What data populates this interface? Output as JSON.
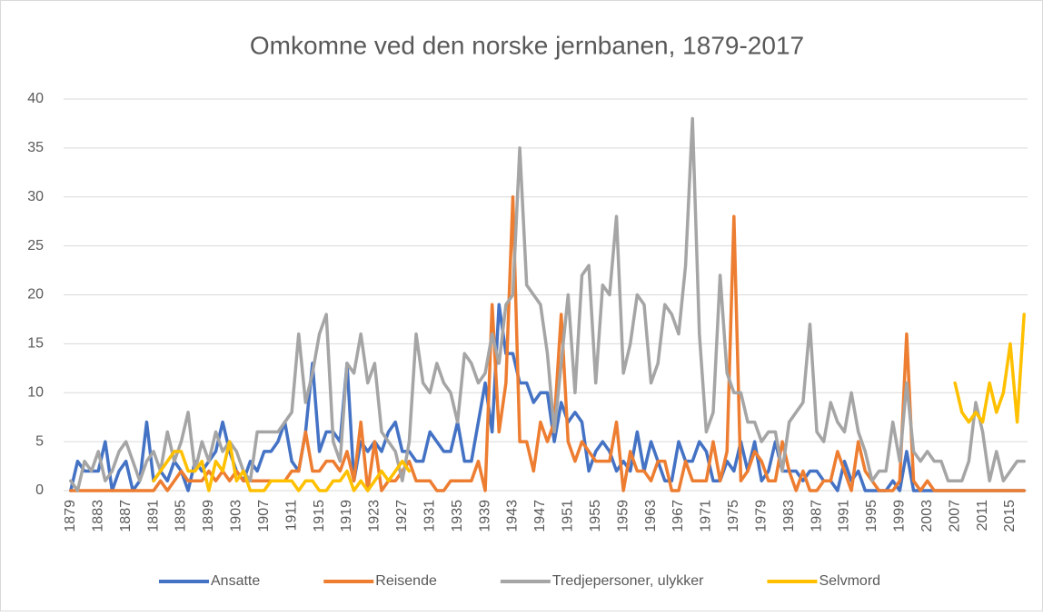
{
  "chart_data": {
    "type": "line",
    "title": "Omkomne ved den norske jernbanen, 1879-2017",
    "categories": [
      "1879",
      null,
      null,
      null,
      "1883",
      null,
      null,
      null,
      "1887",
      null,
      null,
      null,
      "1891",
      null,
      null,
      null,
      "1895",
      null,
      null,
      null,
      "1899",
      null,
      null,
      null,
      "1903",
      null,
      null,
      null,
      "1907",
      null,
      null,
      null,
      "1911",
      null,
      null,
      null,
      "1915",
      null,
      null,
      null,
      "1919",
      null,
      null,
      null,
      "1923",
      null,
      null,
      null,
      "1927",
      null,
      null,
      null,
      "1931",
      null,
      null,
      null,
      "1935",
      null,
      null,
      null,
      "1939",
      null,
      null,
      null,
      "1943",
      null,
      null,
      null,
      "1947",
      null,
      null,
      null,
      "1951",
      null,
      null,
      null,
      "1955",
      null,
      null,
      null,
      "1959",
      null,
      null,
      null,
      "1963",
      null,
      null,
      null,
      "1967",
      null,
      null,
      null,
      "1971",
      null,
      null,
      null,
      "1975",
      null,
      null,
      null,
      "1979",
      null,
      null,
      null,
      "1983",
      null,
      null,
      null,
      "1987",
      null,
      null,
      null,
      "1991",
      null,
      null,
      null,
      "1995",
      null,
      null,
      null,
      "1999",
      null,
      null,
      null,
      "2003",
      null,
      null,
      null,
      "2007",
      null,
      null,
      null,
      "2011",
      null,
      null,
      null,
      "2015",
      null,
      null
    ],
    "series": [
      {
        "name": "Ansatte",
        "color": "#4472c4",
        "values": [
          0,
          3,
          2,
          2,
          2,
          5,
          0,
          2,
          3,
          0,
          1,
          7,
          1,
          2,
          1,
          3,
          2,
          0,
          3,
          2,
          3,
          4,
          7,
          4,
          2,
          1,
          3,
          2,
          4,
          4,
          5,
          7,
          3,
          2,
          6,
          13,
          4,
          6,
          6,
          5,
          13,
          1,
          5,
          4,
          5,
          4,
          6,
          7,
          4,
          4,
          3,
          3,
          6,
          5,
          4,
          4,
          7,
          3,
          3,
          7,
          11,
          6,
          19,
          14,
          14,
          11,
          11,
          9,
          10,
          10,
          5,
          9,
          7,
          8,
          7,
          2,
          4,
          5,
          4,
          2,
          3,
          2,
          6,
          2,
          5,
          3,
          1,
          1,
          5,
          3,
          3,
          5,
          4,
          1,
          1,
          3,
          2,
          5,
          2,
          5,
          1,
          2,
          5,
          2,
          2,
          2,
          1,
          2,
          2,
          1,
          1,
          0,
          3,
          1,
          2,
          0,
          0,
          0,
          0,
          1,
          0,
          4,
          0,
          0,
          0,
          0,
          0,
          0,
          0,
          0,
          0,
          0,
          0,
          0,
          0,
          0,
          0,
          0,
          0
        ]
      },
      {
        "name": "Reisende",
        "color": "#ed7d31",
        "values": [
          0,
          0,
          0,
          0,
          0,
          0,
          0,
          0,
          0,
          0,
          0,
          0,
          0,
          1,
          0,
          1,
          2,
          1,
          1,
          1,
          2,
          1,
          2,
          1,
          2,
          1,
          1,
          1,
          1,
          1,
          1,
          1,
          2,
          2,
          6,
          2,
          2,
          3,
          3,
          2,
          4,
          1,
          7,
          0,
          5,
          0,
          1,
          1,
          2,
          3,
          1,
          1,
          1,
          0,
          0,
          1,
          1,
          1,
          1,
          3,
          0,
          19,
          6,
          11,
          30,
          5,
          5,
          2,
          7,
          5,
          7,
          18,
          5,
          3,
          5,
          4,
          3,
          3,
          3,
          7,
          0,
          4,
          2,
          2,
          1,
          3,
          3,
          0,
          0,
          3,
          1,
          1,
          1,
          5,
          1,
          4,
          28,
          1,
          2,
          4,
          3,
          1,
          1,
          5,
          2,
          0,
          2,
          0,
          0,
          1,
          1,
          4,
          2,
          0,
          5,
          2,
          1,
          0,
          0,
          0,
          1,
          16,
          1,
          0,
          1,
          0,
          0,
          0,
          0,
          0,
          0,
          0,
          0,
          0,
          0,
          0,
          0,
          0,
          0
        ]
      },
      {
        "name": "Tredjepersoner, ulykker",
        "color": "#a5a5a5",
        "values": [
          1,
          0,
          3,
          2,
          4,
          1,
          2,
          4,
          5,
          3,
          1,
          3,
          4,
          2,
          6,
          3,
          5,
          8,
          2,
          5,
          3,
          6,
          4,
          5,
          4,
          2,
          1,
          6,
          6,
          6,
          6,
          7,
          8,
          16,
          9,
          12,
          16,
          18,
          5,
          3,
          13,
          12,
          16,
          11,
          13,
          6,
          5,
          4,
          1,
          5,
          16,
          11,
          10,
          13,
          11,
          10,
          7,
          14,
          13,
          11,
          12,
          16,
          13,
          19,
          20,
          35,
          21,
          20,
          19,
          14,
          6,
          13,
          20,
          10,
          22,
          23,
          11,
          21,
          20,
          28,
          12,
          15,
          20,
          19,
          11,
          13,
          19,
          18,
          16,
          23,
          38,
          16,
          6,
          8,
          22,
          12,
          10,
          10,
          7,
          7,
          5,
          6,
          6,
          2,
          7,
          8,
          9,
          17,
          6,
          5,
          9,
          7,
          6,
          10,
          6,
          4,
          1,
          2,
          2,
          7,
          3,
          11,
          4,
          3,
          4,
          3,
          3,
          1,
          1,
          1,
          3,
          9,
          6,
          1,
          4,
          1,
          2,
          3,
          3
        ]
      },
      {
        "name": "Selvmord",
        "color": "#ffc000",
        "values": [
          null,
          null,
          null,
          null,
          null,
          null,
          null,
          null,
          null,
          null,
          null,
          null,
          1,
          2,
          3,
          4,
          4,
          2,
          2,
          3,
          0,
          3,
          2,
          5,
          1,
          2,
          0,
          0,
          0,
          1,
          1,
          1,
          1,
          0,
          1,
          1,
          0,
          0,
          1,
          1,
          2,
          0,
          1,
          0,
          1,
          2,
          1,
          2,
          3,
          2,
          null,
          null,
          null,
          null,
          null,
          null,
          null,
          null,
          null,
          null,
          null,
          null,
          null,
          null,
          null,
          null,
          null,
          null,
          null,
          null,
          null,
          null,
          null,
          null,
          null,
          null,
          null,
          null,
          null,
          null,
          null,
          null,
          null,
          null,
          null,
          null,
          null,
          null,
          null,
          null,
          null,
          null,
          null,
          null,
          null,
          null,
          null,
          null,
          null,
          null,
          null,
          null,
          null,
          null,
          null,
          null,
          null,
          null,
          null,
          null,
          null,
          null,
          null,
          null,
          null,
          null,
          null,
          null,
          null,
          null,
          null,
          null,
          null,
          null,
          null,
          null,
          null,
          null,
          11,
          8,
          7,
          8,
          7,
          11,
          8,
          10,
          15,
          7,
          18
        ]
      }
    ],
    "ylim": [
      0,
      40
    ],
    "yticks": [
      0,
      5,
      10,
      15,
      20,
      25,
      30,
      35,
      40
    ],
    "grid": true,
    "legend": "bottom"
  }
}
